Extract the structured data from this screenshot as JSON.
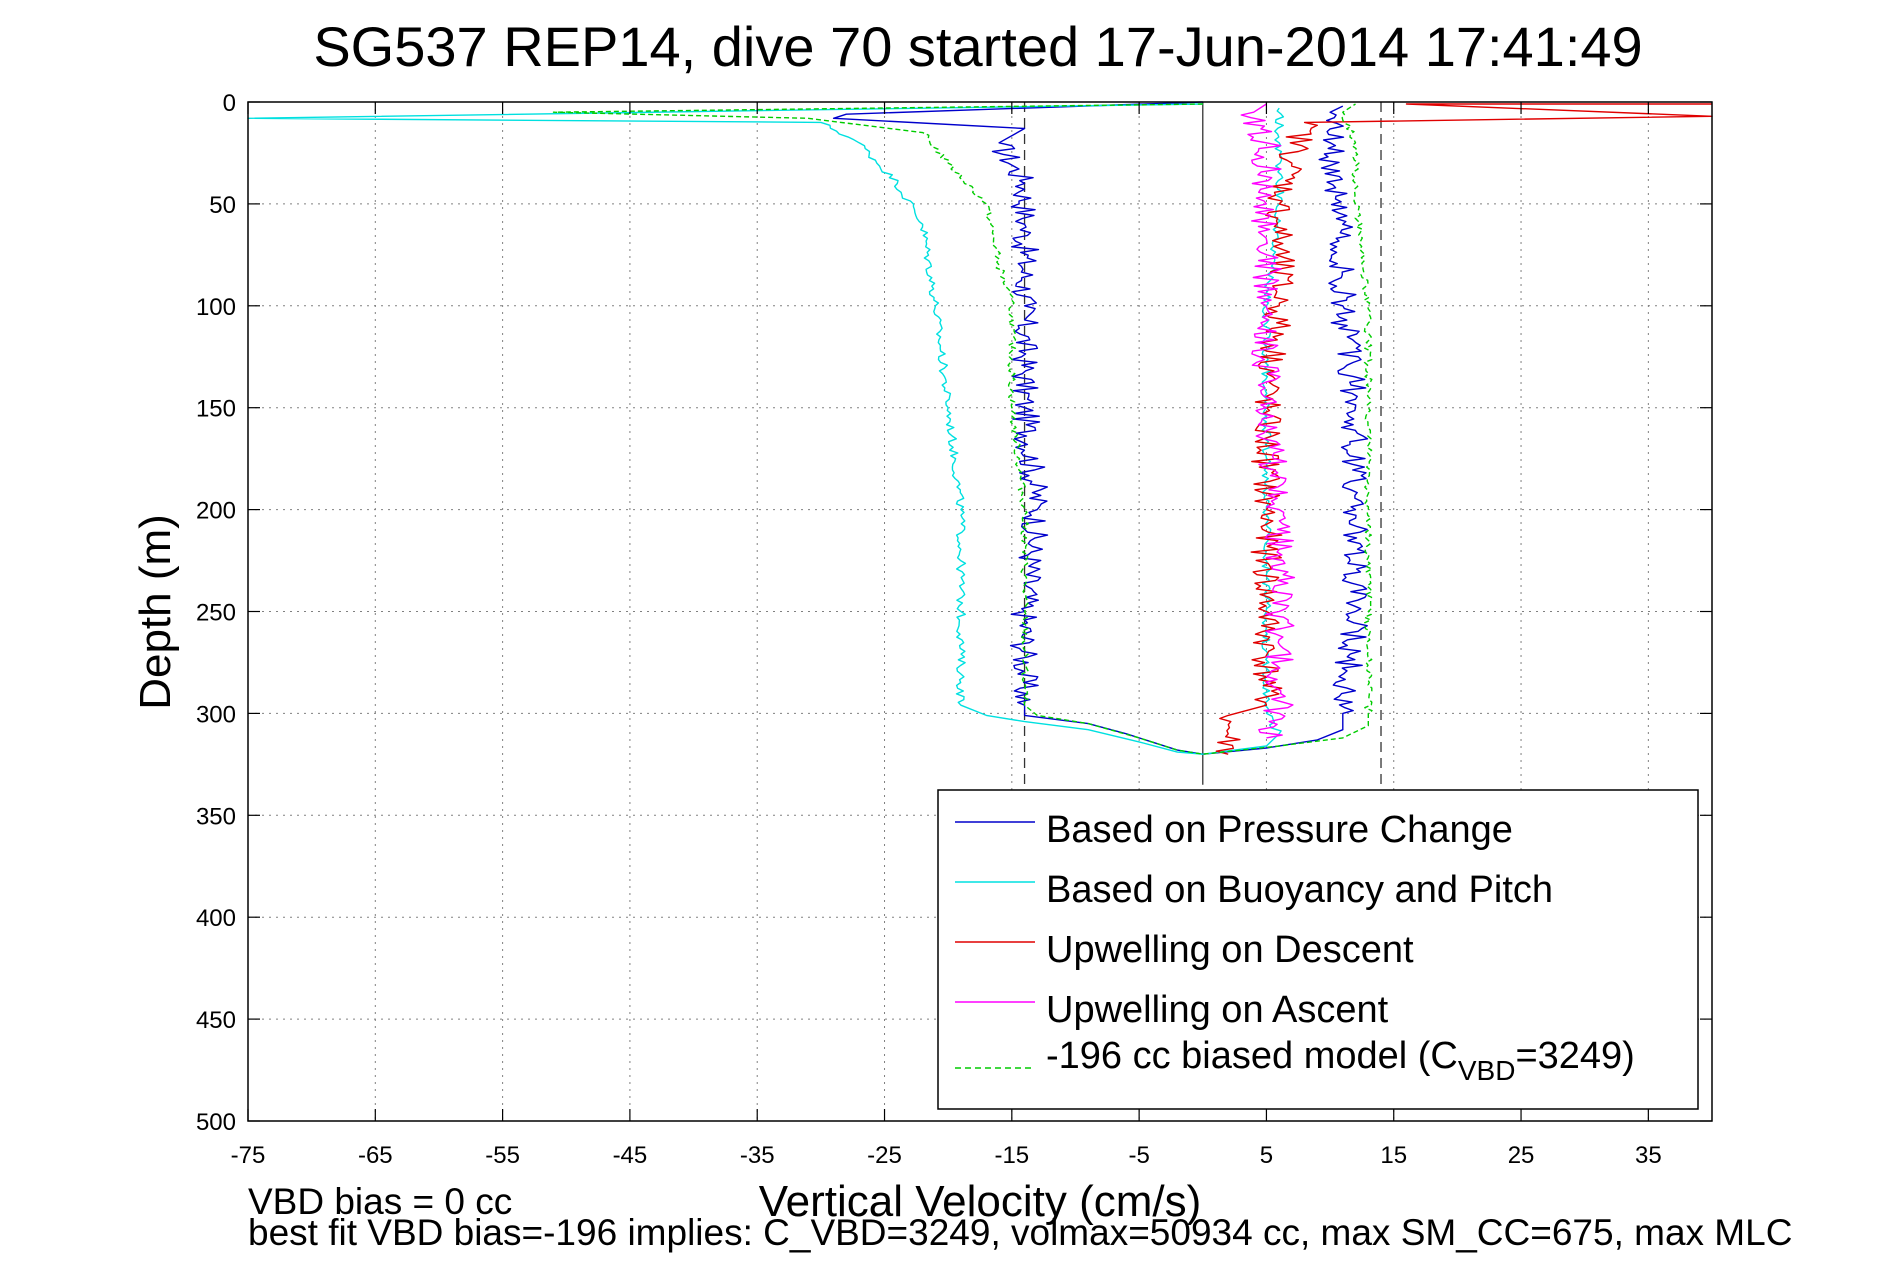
{
  "chart_data": {
    "type": "line",
    "title": "SG537 REP14, dive 70 started 17-Jun-2014 17:41:49",
    "xlabel": "Vertical Velocity (cm/s)",
    "ylabel": "Depth (m)",
    "xlim": [
      -75,
      40
    ],
    "ylim": [
      0,
      500
    ],
    "y_reversed": true,
    "grid": true,
    "x_ticks": [
      "-75",
      "-65",
      "-55",
      "-45",
      "-35",
      "-25",
      "-15",
      "-5",
      "5",
      "15",
      "25",
      "35"
    ],
    "y_ticks": [
      "0",
      "50",
      "100",
      "150",
      "200",
      "250",
      "300",
      "350",
      "400",
      "450",
      "500"
    ],
    "reference_lines": [
      {
        "x": 0,
        "style": "solid"
      },
      {
        "x": -14,
        "style": "dashed"
      },
      {
        "x": 14,
        "style": "dashed"
      }
    ],
    "legend_position": "bottom-right",
    "series": [
      {
        "name": "Based on Pressure Change",
        "color": "#0000cc",
        "style": "solid",
        "points": [
          [
            0,
            0
          ],
          [
            -28,
            6
          ],
          [
            -29,
            8
          ],
          [
            -14,
            13
          ],
          [
            -16,
            20
          ],
          [
            -14,
            40
          ],
          [
            -14,
            60
          ],
          [
            -14,
            100
          ],
          [
            -14,
            150
          ],
          [
            -13,
            200
          ],
          [
            -14,
            250
          ],
          [
            -14,
            296
          ],
          [
            -14,
            301
          ],
          [
            -9,
            305
          ],
          [
            -6,
            310
          ],
          [
            -2,
            318
          ],
          [
            0,
            320
          ],
          [
            5,
            317
          ],
          [
            9,
            313
          ],
          [
            11,
            308
          ],
          [
            11,
            300
          ],
          [
            12,
            250
          ],
          [
            12,
            200
          ],
          [
            12,
            150
          ],
          [
            11,
            100
          ],
          [
            11,
            60
          ],
          [
            10,
            20
          ],
          [
            10,
            5
          ],
          [
            11,
            2
          ]
        ]
      },
      {
        "name": "Based on Buoyancy and Pitch",
        "color": "#00e0e0",
        "style": "solid",
        "points": [
          [
            0,
            1
          ],
          [
            -75,
            8
          ],
          [
            -30,
            10
          ],
          [
            -27,
            20
          ],
          [
            -24,
            40
          ],
          [
            -22,
            60
          ],
          [
            -21,
            100
          ],
          [
            -20,
            150
          ],
          [
            -19,
            200
          ],
          [
            -19,
            250
          ],
          [
            -19,
            296
          ],
          [
            -17,
            301
          ],
          [
            -14,
            304
          ],
          [
            -9,
            308
          ],
          [
            -5,
            314
          ],
          [
            -2,
            319
          ],
          [
            0,
            320
          ],
          [
            5,
            316
          ],
          [
            6,
            310
          ],
          [
            5,
            300
          ],
          [
            5,
            250
          ],
          [
            5,
            200
          ],
          [
            5,
            150
          ],
          [
            5,
            100
          ],
          [
            6,
            50
          ],
          [
            6,
            20
          ],
          [
            6,
            3
          ]
        ]
      },
      {
        "name": "Upwelling on Descent",
        "color": "#e00000",
        "style": "solid",
        "points": [
          [
            40,
            1
          ],
          [
            16,
            1
          ],
          [
            40,
            7
          ],
          [
            8,
            10
          ],
          [
            7,
            30
          ],
          [
            6,
            50
          ],
          [
            6,
            100
          ],
          [
            5,
            150
          ],
          [
            5,
            200
          ],
          [
            5,
            250
          ],
          [
            5,
            296
          ],
          [
            2,
            301
          ],
          [
            2,
            310
          ],
          [
            2,
            320
          ]
        ]
      },
      {
        "name": "Upwelling on Ascent",
        "color": "#ff00ff",
        "style": "solid",
        "points": [
          [
            5,
            312
          ],
          [
            6,
            300
          ],
          [
            6,
            250
          ],
          [
            6,
            200
          ],
          [
            5,
            150
          ],
          [
            5,
            100
          ],
          [
            5,
            50
          ],
          [
            5,
            20
          ],
          [
            4,
            5
          ],
          [
            5,
            1
          ]
        ]
      },
      {
        "name": "-196 cc biased model (C VBD=3249)",
        "color": "#00cc00",
        "style": "dashed",
        "points": [
          [
            0,
            1
          ],
          [
            -51,
            5
          ],
          [
            -31,
            8
          ],
          [
            -22,
            15
          ],
          [
            -20,
            30
          ],
          [
            -17,
            50
          ],
          [
            -16,
            80
          ],
          [
            -15,
            100
          ],
          [
            -15,
            150
          ],
          [
            -14,
            200
          ],
          [
            -14,
            250
          ],
          [
            -14,
            296
          ],
          [
            -13,
            301
          ],
          [
            -9,
            305
          ],
          [
            -5,
            312
          ],
          [
            -2,
            318
          ],
          [
            0,
            320
          ],
          [
            6,
            316
          ],
          [
            11,
            312
          ],
          [
            13,
            306
          ],
          [
            13,
            300
          ],
          [
            13,
            250
          ],
          [
            13,
            200
          ],
          [
            13,
            150
          ],
          [
            13,
            100
          ],
          [
            12,
            50
          ],
          [
            12,
            20
          ],
          [
            11,
            5
          ],
          [
            12,
            1
          ]
        ]
      }
    ],
    "legend_labels": {
      "pressure": "Based on Pressure Change",
      "buoyancy": "Based on Buoyancy and Pitch",
      "descent": "Upwelling on Descent",
      "ascent": "Upwelling on Ascent",
      "model_prefix": "-196 cc biased model (C",
      "model_sub": "VBD",
      "model_suffix": "=3249)"
    }
  },
  "footnotes": {
    "line1": "VBD bias = 0 cc",
    "line2": "best fit VBD bias=-196 implies: C_VBD=3249, volmax=50934 cc, max SM_CC=675, max MLC"
  }
}
